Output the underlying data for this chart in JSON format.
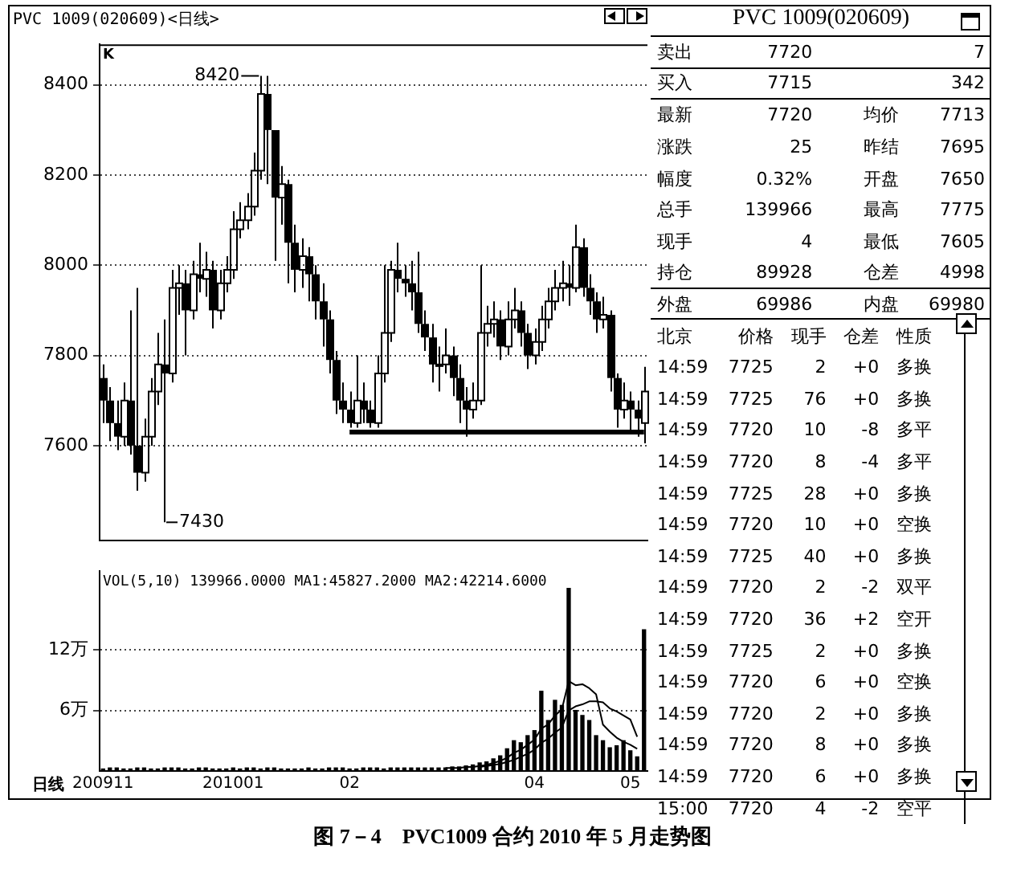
{
  "chart_data": [
    {
      "type": "candlestick",
      "title": "PVC 1009(020609)<日线>",
      "tick_labels": "y",
      "grid": "y",
      "color": "#000000",
      "categories": [
        "200911",
        null,
        null,
        null,
        null,
        null,
        null,
        null,
        null,
        null,
        null,
        null,
        null,
        null,
        null,
        null,
        null,
        null,
        null,
        "201001",
        null,
        null,
        null,
        null,
        null,
        null,
        null,
        null,
        null,
        null,
        null,
        null,
        null,
        null,
        null,
        null,
        "02",
        null,
        null,
        null,
        null,
        null,
        null,
        null,
        null,
        null,
        null,
        null,
        null,
        null,
        null,
        null,
        null,
        null,
        null,
        null,
        null,
        null,
        null,
        null,
        null,
        null,
        null,
        "04",
        null,
        null,
        null,
        null,
        null,
        null,
        null,
        null,
        null,
        null,
        null,
        null,
        null,
        "05",
        null,
        null
      ],
      "ylim": [
        7390,
        8490
      ],
      "yticks": [
        7600,
        7800,
        8000,
        8200,
        8400
      ],
      "ohlc": [
        [
          7750,
          7780,
          7650,
          7700
        ],
        [
          7700,
          7730,
          7610,
          7650
        ],
        [
          7650,
          7700,
          7590,
          7620
        ],
        [
          7620,
          7740,
          7600,
          7700
        ],
        [
          7700,
          7900,
          7580,
          7600
        ],
        [
          7600,
          7950,
          7500,
          7540
        ],
        [
          7540,
          7660,
          7520,
          7620
        ],
        [
          7620,
          7750,
          7600,
          7720
        ],
        [
          7720,
          7850,
          7690,
          7780
        ],
        [
          7780,
          7880,
          7430,
          7760
        ],
        [
          7760,
          7990,
          7740,
          7950
        ],
        [
          7950,
          8000,
          7890,
          7960
        ],
        [
          7960,
          7990,
          7800,
          7900
        ],
        [
          7900,
          8010,
          7880,
          7980
        ],
        [
          7980,
          8050,
          7940,
          7970
        ],
        [
          7970,
          8030,
          7930,
          7990
        ],
        [
          7990,
          8010,
          7860,
          7900
        ],
        [
          7900,
          7990,
          7880,
          7960
        ],
        [
          7960,
          8020,
          7940,
          7990
        ],
        [
          7990,
          8120,
          7970,
          8080
        ],
        [
          8080,
          8140,
          8060,
          8100
        ],
        [
          8100,
          8160,
          8080,
          8130
        ],
        [
          8130,
          8250,
          8110,
          8210
        ],
        [
          8210,
          8420,
          8190,
          8380
        ],
        [
          8380,
          8420,
          8180,
          8300
        ],
        [
          8300,
          8300,
          8010,
          8150
        ],
        [
          8150,
          8220,
          8090,
          8180
        ],
        [
          8180,
          8190,
          7960,
          8050
        ],
        [
          8050,
          8090,
          7940,
          7990
        ],
        [
          7990,
          8060,
          7950,
          8020
        ],
        [
          8020,
          8040,
          7920,
          7980
        ],
        [
          7980,
          8000,
          7880,
          7920
        ],
        [
          7920,
          7960,
          7820,
          7880
        ],
        [
          7880,
          7900,
          7760,
          7790
        ],
        [
          7790,
          7810,
          7670,
          7700
        ],
        [
          7700,
          7740,
          7650,
          7680
        ],
        [
          7680,
          7720,
          7640,
          7650
        ],
        [
          7650,
          7800,
          7640,
          7700
        ],
        [
          7700,
          7740,
          7650,
          7680
        ],
        [
          7680,
          7700,
          7640,
          7650
        ],
        [
          7650,
          7800,
          7640,
          7760
        ],
        [
          7760,
          8000,
          7740,
          7850
        ],
        [
          7850,
          8010,
          7830,
          7990
        ],
        [
          7990,
          8050,
          7940,
          7970
        ],
        [
          7970,
          8000,
          7930,
          7960
        ],
        [
          7960,
          8010,
          7900,
          7940
        ],
        [
          7940,
          8030,
          7850,
          7870
        ],
        [
          7870,
          7900,
          7810,
          7840
        ],
        [
          7840,
          7870,
          7740,
          7780
        ],
        [
          7780,
          7820,
          7720,
          7780
        ],
        [
          7780,
          7860,
          7760,
          7800
        ],
        [
          7800,
          7820,
          7710,
          7750
        ],
        [
          7750,
          7780,
          7650,
          7700
        ],
        [
          7700,
          7730,
          7620,
          7680
        ],
        [
          7680,
          7740,
          7660,
          7700
        ],
        [
          7700,
          8000,
          7690,
          7850
        ],
        [
          7850,
          7910,
          7820,
          7870
        ],
        [
          7870,
          7920,
          7840,
          7880
        ],
        [
          7880,
          7900,
          7790,
          7820
        ],
        [
          7820,
          7920,
          7800,
          7880
        ],
        [
          7880,
          7950,
          7860,
          7900
        ],
        [
          7900,
          7920,
          7820,
          7850
        ],
        [
          7850,
          7870,
          7770,
          7800
        ],
        [
          7800,
          7860,
          7780,
          7830
        ],
        [
          7830,
          7910,
          7810,
          7880
        ],
        [
          7880,
          7950,
          7860,
          7920
        ],
        [
          7920,
          7990,
          7900,
          7950
        ],
        [
          7950,
          8010,
          7920,
          7960
        ],
        [
          7960,
          8000,
          7910,
          7950
        ],
        [
          7950,
          8090,
          7940,
          8040
        ],
        [
          8040,
          8060,
          7930,
          7950
        ],
        [
          7950,
          7980,
          7890,
          7920
        ],
        [
          7920,
          7940,
          7850,
          7880
        ],
        [
          7880,
          7930,
          7860,
          7890
        ],
        [
          7890,
          7900,
          7720,
          7750
        ],
        [
          7750,
          7760,
          7640,
          7680
        ],
        [
          7680,
          7740,
          7660,
          7700
        ],
        [
          7700,
          7720,
          7630,
          7680
        ],
        [
          7680,
          7700,
          7620,
          7660
        ],
        [
          7650,
          7775,
          7605,
          7720
        ]
      ],
      "series": [
        {
          "type": "line",
          "color": "#000000",
          "values": [
            null,
            null,
            null,
            null,
            null,
            null,
            null,
            null,
            null,
            null,
            null,
            null,
            null,
            null,
            null,
            null,
            null,
            null,
            null,
            null,
            null,
            null,
            null,
            null,
            null,
            null,
            null,
            null,
            null,
            null,
            null,
            null,
            null,
            null,
            null,
            null,
            7630,
            null,
            null,
            null,
            null,
            null,
            null,
            null,
            null,
            null,
            null,
            null,
            null,
            null,
            null,
            null,
            null,
            null,
            null,
            null,
            null,
            null,
            null,
            null,
            null,
            null,
            null,
            null,
            null,
            null,
            null,
            null,
            null,
            null,
            null,
            null,
            null,
            null,
            null,
            null,
            null,
            null,
            null,
            7630
          ]
        }
      ],
      "marker": "none",
      "annotations": [
        "K",
        "8420",
        "7430",
        "图 7－4　PVC1009 合约 2010 年 5 月走势图"
      ]
    },
    {
      "type": "bar",
      "title": "VOL(5,10) 139966.0000 MA1:45827.2000 MA2:42214.6000",
      "xlabel": "日线",
      "grid": "y",
      "marker": "none",
      "categories": [
        "200911",
        null,
        null,
        null,
        null,
        null,
        null,
        null,
        null,
        null,
        null,
        null,
        null,
        null,
        null,
        null,
        null,
        null,
        null,
        "201001",
        null,
        null,
        null,
        null,
        null,
        null,
        null,
        null,
        null,
        null,
        null,
        null,
        null,
        null,
        null,
        null,
        "02",
        null,
        null,
        null,
        null,
        null,
        null,
        null,
        null,
        null,
        null,
        null,
        null,
        null,
        null,
        null,
        null,
        null,
        null,
        null,
        null,
        null,
        null,
        null,
        null,
        null,
        null,
        "04",
        null,
        null,
        null,
        null,
        null,
        null,
        null,
        null,
        null,
        null,
        null,
        null,
        null,
        "05",
        null,
        null
      ],
      "ylim": [
        0,
        19.8
      ],
      "yticks": [
        {
          "value": 6,
          "label": "6万"
        },
        {
          "value": 12,
          "label": "12万"
        }
      ],
      "series": [
        {
          "type": "bar",
          "color": "#000000",
          "values": [
            0.2,
            0.3,
            0.3,
            0.2,
            0.2,
            0.3,
            0.3,
            0.2,
            0.2,
            0.3,
            0.3,
            0.3,
            0.2,
            0.2,
            0.3,
            0.3,
            0.2,
            0.2,
            0.2,
            0.3,
            0.2,
            0.3,
            0.3,
            0.2,
            0.3,
            0.3,
            0.2,
            0.2,
            0.2,
            0.2,
            0.3,
            0.2,
            0.2,
            0.3,
            0.3,
            0.3,
            0.2,
            0.2,
            0.3,
            0.3,
            0.3,
            0.2,
            0.3,
            0.3,
            0.3,
            0.3,
            0.3,
            0.3,
            0.3,
            0.3,
            0.3,
            0.4,
            0.4,
            0.5,
            0.6,
            0.8,
            0.9,
            1.2,
            1.5,
            2.2,
            3.0,
            2.8,
            3.5,
            4.0,
            7.9,
            5.0,
            7.0,
            6.5,
            18.1,
            6.0,
            5.5,
            5.0,
            3.5,
            3.0,
            2.3,
            2.5,
            3.0,
            2.0,
            1.4,
            14.0
          ]
        },
        {
          "type": "line",
          "color": "#000000",
          "values": [
            null,
            null,
            null,
            null,
            null,
            null,
            null,
            null,
            null,
            null,
            null,
            null,
            null,
            null,
            null,
            null,
            null,
            null,
            null,
            null,
            null,
            null,
            null,
            null,
            null,
            null,
            null,
            null,
            null,
            null,
            null,
            null,
            null,
            null,
            null,
            null,
            null,
            null,
            null,
            null,
            null,
            null,
            null,
            null,
            null,
            null,
            null,
            null,
            null,
            null,
            0.3,
            0.3,
            0.3,
            0.4,
            0.4,
            0.5,
            0.6,
            0.8,
            1.0,
            1.3,
            1.8,
            2.1,
            2.6,
            3.1,
            4.2,
            4.6,
            5.5,
            6.1,
            8.9,
            8.5,
            8.6,
            8.2,
            7.6,
            4.6,
            3.9,
            3.3,
            2.9,
            2.6,
            2.2,
            null
          ]
        },
        {
          "type": "line",
          "color": "#000000",
          "values": [
            null,
            null,
            null,
            null,
            null,
            null,
            null,
            null,
            null,
            null,
            null,
            null,
            null,
            null,
            null,
            null,
            null,
            null,
            null,
            null,
            null,
            null,
            null,
            null,
            null,
            null,
            null,
            null,
            null,
            null,
            null,
            null,
            null,
            null,
            null,
            null,
            null,
            null,
            null,
            null,
            null,
            null,
            null,
            null,
            null,
            null,
            null,
            null,
            null,
            null,
            null,
            null,
            null,
            null,
            null,
            0.4,
            0.5,
            0.6,
            0.7,
            0.9,
            1.1,
            1.4,
            1.7,
            2.1,
            2.8,
            3.2,
            3.8,
            4.3,
            6.0,
            6.4,
            6.6,
            6.9,
            6.9,
            6.8,
            6.2,
            5.9,
            5.5,
            5.1,
            3.4,
            null
          ]
        }
      ]
    },
    {
      "type": "other",
      "title": "PVC 1009(020609)",
      "cell_labels": [
        [
          "卖出",
          "7720",
          "7"
        ],
        [
          "买入",
          "7715",
          "342"
        ],
        [
          "最新",
          "7720",
          "均价",
          "7713"
        ],
        [
          "涨跌",
          "25",
          "昨结",
          "7695"
        ],
        [
          "幅度",
          "0.32%",
          "开盘",
          "7650"
        ],
        [
          "总手",
          "139966",
          "最高",
          "7775"
        ],
        [
          "现手",
          "4",
          "最低",
          "7605"
        ],
        [
          "持仓",
          "89928",
          "仓差",
          "4998"
        ],
        [
          "外盘",
          "69986",
          "内盘",
          "69980"
        ],
        [
          "北京",
          "价格",
          "现手",
          "仓差",
          "性质"
        ],
        [
          "14:59",
          "7725",
          "2",
          "+0",
          "多换"
        ],
        [
          "14:59",
          "7725",
          "76",
          "+0",
          "多换"
        ],
        [
          "14:59",
          "7720",
          "10",
          "-8",
          "多平"
        ],
        [
          "14:59",
          "7720",
          "8",
          "-4",
          "多平"
        ],
        [
          "14:59",
          "7725",
          "28",
          "+0",
          "多换"
        ],
        [
          "14:59",
          "7720",
          "10",
          "+0",
          "空换"
        ],
        [
          "14:59",
          "7725",
          "40",
          "+0",
          "多换"
        ],
        [
          "14:59",
          "7720",
          "2",
          "-2",
          "双平"
        ],
        [
          "14:59",
          "7720",
          "36",
          "+2",
          "空开"
        ],
        [
          "14:59",
          "7725",
          "2",
          "+0",
          "多换"
        ],
        [
          "14:59",
          "7720",
          "6",
          "+0",
          "空换"
        ],
        [
          "14:59",
          "7720",
          "2",
          "+0",
          "多换"
        ],
        [
          "14:59",
          "7720",
          "8",
          "+0",
          "多换"
        ],
        [
          "14:59",
          "7720",
          "6",
          "+0",
          "多换"
        ],
        [
          "15:00",
          "7720",
          "4",
          "-2",
          "空平"
        ]
      ]
    }
  ]
}
